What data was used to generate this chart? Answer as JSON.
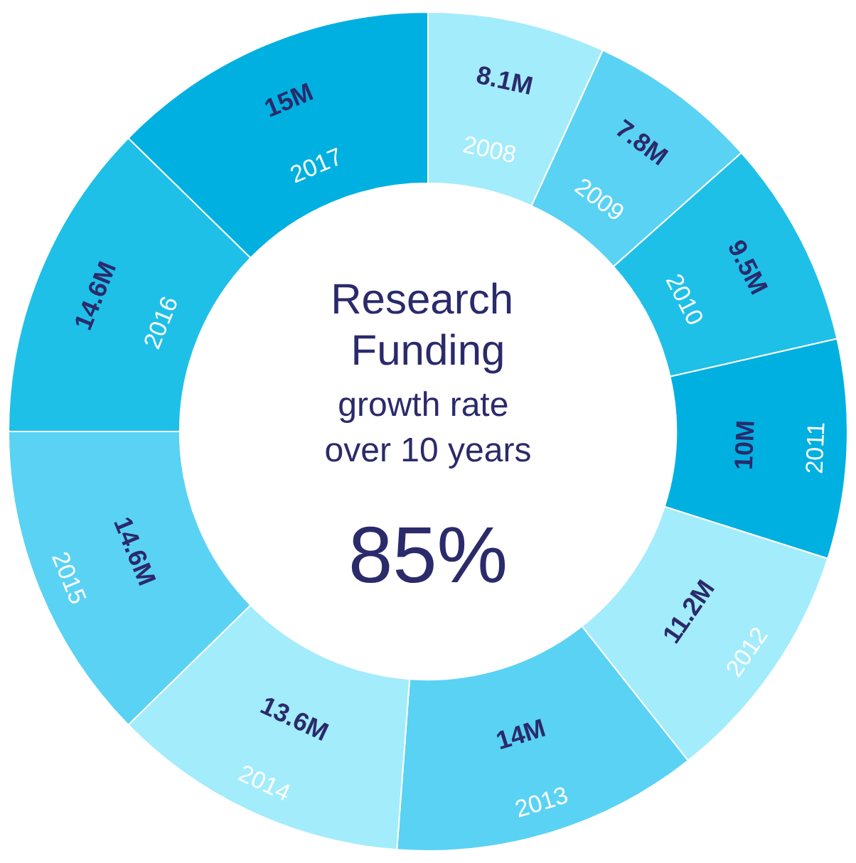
{
  "chart_data": {
    "type": "donut",
    "title": "Research Funding",
    "subtitle": "growth rate over 10 years",
    "annotations": [
      "85%"
    ],
    "categories": [
      "2008",
      "2009",
      "2010",
      "2011",
      "2012",
      "2013",
      "2014",
      "2015",
      "2016",
      "2017"
    ],
    "values": [
      8.1,
      7.8,
      9.5,
      10,
      11.2,
      14,
      13.6,
      14.6,
      14.6,
      15
    ],
    "value_labels": [
      "8.1M",
      "7.8M",
      "9.5M",
      "10M",
      "11.2M",
      "14M",
      "13.6M",
      "14.6M",
      "14.6M",
      "15M"
    ],
    "colors": [
      "#a3ecfb",
      "#5ad2f4",
      "#1ec0e8",
      "#00b0e0",
      "#a3ecfb",
      "#5ad2f4",
      "#a3ecfb",
      "#5ad2f4",
      "#1ec0e8",
      "#00b0e0"
    ],
    "legend": false
  }
}
